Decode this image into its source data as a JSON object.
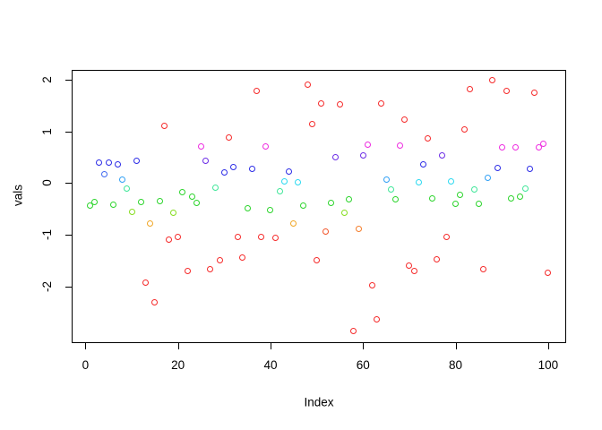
{
  "figure": {
    "background": "#FFFFFF",
    "frame_color": "#000000"
  },
  "chart_data": {
    "type": "scatter",
    "title": "",
    "xlabel": "Index",
    "ylabel": "vals",
    "marker": "open-circle",
    "grid": false,
    "legend": null,
    "xlim": [
      -2.98,
      103.9
    ],
    "ylim": [
      -3.1,
      2.195
    ],
    "x_ticks": [
      0,
      20,
      40,
      60,
      80,
      100
    ],
    "y_ticks": [
      -2,
      -1,
      0,
      1,
      2
    ],
    "palette": {
      "red": "#F52A2A",
      "vermilion": "#F2552A",
      "orange": "#F57F2E",
      "amber": "#F0A626",
      "chartreuse": "#86DD1F",
      "green": "#2BD42B",
      "spring": "#3FE699",
      "cyan": "#2BD9F0",
      "skyblue": "#2F9FF5",
      "royalblue": "#4169F0",
      "blue": "#2B2BE6",
      "violet": "#6B2BE6",
      "magenta": "#EE2BE0"
    },
    "points": [
      {
        "i": 1,
        "v": -0.44,
        "c": "green"
      },
      {
        "i": 2,
        "v": -0.37,
        "c": "green"
      },
      {
        "i": 3,
        "v": 0.39,
        "c": "blue"
      },
      {
        "i": 4,
        "v": 0.18,
        "c": "royalblue"
      },
      {
        "i": 5,
        "v": 0.39,
        "c": "blue"
      },
      {
        "i": 6,
        "v": -0.42,
        "c": "green"
      },
      {
        "i": 7,
        "v": 0.37,
        "c": "blue"
      },
      {
        "i": 8,
        "v": 0.07,
        "c": "skyblue"
      },
      {
        "i": 9,
        "v": -0.1,
        "c": "spring"
      },
      {
        "i": 10,
        "v": -0.56,
        "c": "chartreuse"
      },
      {
        "i": 11,
        "v": 0.44,
        "c": "blue"
      },
      {
        "i": 12,
        "v": -0.37,
        "c": "green"
      },
      {
        "i": 13,
        "v": -1.93,
        "c": "red"
      },
      {
        "i": 14,
        "v": -0.79,
        "c": "amber"
      },
      {
        "i": 15,
        "v": -2.31,
        "c": "red"
      },
      {
        "i": 16,
        "v": -0.35,
        "c": "green"
      },
      {
        "i": 17,
        "v": 1.11,
        "c": "red"
      },
      {
        "i": 18,
        "v": -1.1,
        "c": "red"
      },
      {
        "i": 19,
        "v": -0.57,
        "c": "chartreuse"
      },
      {
        "i": 20,
        "v": -1.04,
        "c": "red"
      },
      {
        "i": 21,
        "v": -0.18,
        "c": "green"
      },
      {
        "i": 22,
        "v": -1.7,
        "c": "red"
      },
      {
        "i": 23,
        "v": -0.27,
        "c": "green"
      },
      {
        "i": 24,
        "v": -0.39,
        "c": "green"
      },
      {
        "i": 25,
        "v": 0.71,
        "c": "magenta"
      },
      {
        "i": 26,
        "v": 0.44,
        "c": "violet"
      },
      {
        "i": 27,
        "v": -1.66,
        "c": "red"
      },
      {
        "i": 28,
        "v": -0.09,
        "c": "spring"
      },
      {
        "i": 29,
        "v": -1.5,
        "c": "red"
      },
      {
        "i": 30,
        "v": 0.2,
        "c": "blue"
      },
      {
        "i": 31,
        "v": 0.88,
        "c": "red"
      },
      {
        "i": 32,
        "v": 0.31,
        "c": "blue"
      },
      {
        "i": 33,
        "v": -1.04,
        "c": "red"
      },
      {
        "i": 34,
        "v": -1.44,
        "c": "red"
      },
      {
        "i": 35,
        "v": -0.49,
        "c": "green"
      },
      {
        "i": 36,
        "v": 0.27,
        "c": "blue"
      },
      {
        "i": 37,
        "v": 1.79,
        "c": "red"
      },
      {
        "i": 38,
        "v": -1.05,
        "c": "red"
      },
      {
        "i": 39,
        "v": 0.71,
        "c": "magenta"
      },
      {
        "i": 40,
        "v": -0.53,
        "c": "green"
      },
      {
        "i": 41,
        "v": -1.06,
        "c": "red"
      },
      {
        "i": 42,
        "v": -0.16,
        "c": "spring"
      },
      {
        "i": 43,
        "v": 0.04,
        "c": "cyan"
      },
      {
        "i": 44,
        "v": 0.23,
        "c": "blue"
      },
      {
        "i": 45,
        "v": -0.78,
        "c": "amber"
      },
      {
        "i": 46,
        "v": 0.02,
        "c": "cyan"
      },
      {
        "i": 47,
        "v": -0.43,
        "c": "green"
      },
      {
        "i": 48,
        "v": 1.91,
        "c": "red"
      },
      {
        "i": 49,
        "v": 1.15,
        "c": "red"
      },
      {
        "i": 50,
        "v": -1.5,
        "c": "red"
      },
      {
        "i": 51,
        "v": 1.55,
        "c": "red"
      },
      {
        "i": 52,
        "v": -0.93,
        "c": "vermilion"
      },
      {
        "i": 53,
        "v": -0.38,
        "c": "green"
      },
      {
        "i": 54,
        "v": 0.5,
        "c": "violet"
      },
      {
        "i": 55,
        "v": 1.53,
        "c": "red"
      },
      {
        "i": 56,
        "v": -0.57,
        "c": "chartreuse"
      },
      {
        "i": 57,
        "v": -0.31,
        "c": "green"
      },
      {
        "i": 58,
        "v": -2.87,
        "c": "red"
      },
      {
        "i": 59,
        "v": -0.89,
        "c": "orange"
      },
      {
        "i": 60,
        "v": 0.53,
        "c": "violet"
      },
      {
        "i": 61,
        "v": 0.74,
        "c": "magenta"
      },
      {
        "i": 62,
        "v": -1.98,
        "c": "red"
      },
      {
        "i": 63,
        "v": -2.64,
        "c": "red"
      },
      {
        "i": 64,
        "v": 1.55,
        "c": "red"
      },
      {
        "i": 65,
        "v": 0.06,
        "c": "skyblue"
      },
      {
        "i": 66,
        "v": -0.12,
        "c": "spring"
      },
      {
        "i": 67,
        "v": -0.32,
        "c": "green"
      },
      {
        "i": 68,
        "v": 0.73,
        "c": "magenta"
      },
      {
        "i": 69,
        "v": 1.23,
        "c": "red"
      },
      {
        "i": 70,
        "v": -1.59,
        "c": "red"
      },
      {
        "i": 71,
        "v": -1.7,
        "c": "red"
      },
      {
        "i": 72,
        "v": 0.01,
        "c": "cyan"
      },
      {
        "i": 73,
        "v": 0.37,
        "c": "blue"
      },
      {
        "i": 74,
        "v": 0.87,
        "c": "red"
      },
      {
        "i": 75,
        "v": -0.3,
        "c": "green"
      },
      {
        "i": 76,
        "v": -1.47,
        "c": "red"
      },
      {
        "i": 77,
        "v": 0.53,
        "c": "violet"
      },
      {
        "i": 78,
        "v": -1.04,
        "c": "red"
      },
      {
        "i": 79,
        "v": 0.03,
        "c": "cyan"
      },
      {
        "i": 80,
        "v": -0.4,
        "c": "green"
      },
      {
        "i": 81,
        "v": -0.22,
        "c": "green"
      },
      {
        "i": 82,
        "v": 1.04,
        "c": "red"
      },
      {
        "i": 83,
        "v": 1.82,
        "c": "red"
      },
      {
        "i": 84,
        "v": -0.13,
        "c": "spring"
      },
      {
        "i": 85,
        "v": -0.4,
        "c": "green"
      },
      {
        "i": 86,
        "v": -1.66,
        "c": "red"
      },
      {
        "i": 87,
        "v": 0.1,
        "c": "skyblue"
      },
      {
        "i": 88,
        "v": 1.99,
        "c": "red"
      },
      {
        "i": 89,
        "v": 0.3,
        "c": "blue"
      },
      {
        "i": 90,
        "v": 0.69,
        "c": "magenta"
      },
      {
        "i": 91,
        "v": 1.78,
        "c": "red"
      },
      {
        "i": 92,
        "v": -0.29,
        "c": "green"
      },
      {
        "i": 93,
        "v": 0.7,
        "c": "magenta"
      },
      {
        "i": 94,
        "v": -0.26,
        "c": "green"
      },
      {
        "i": 95,
        "v": -0.1,
        "c": "spring"
      },
      {
        "i": 96,
        "v": 0.27,
        "c": "blue"
      },
      {
        "i": 97,
        "v": 1.76,
        "c": "red"
      },
      {
        "i": 98,
        "v": 0.69,
        "c": "magenta"
      },
      {
        "i": 99,
        "v": 0.77,
        "c": "magenta"
      },
      {
        "i": 100,
        "v": -1.74,
        "c": "red"
      }
    ]
  }
}
